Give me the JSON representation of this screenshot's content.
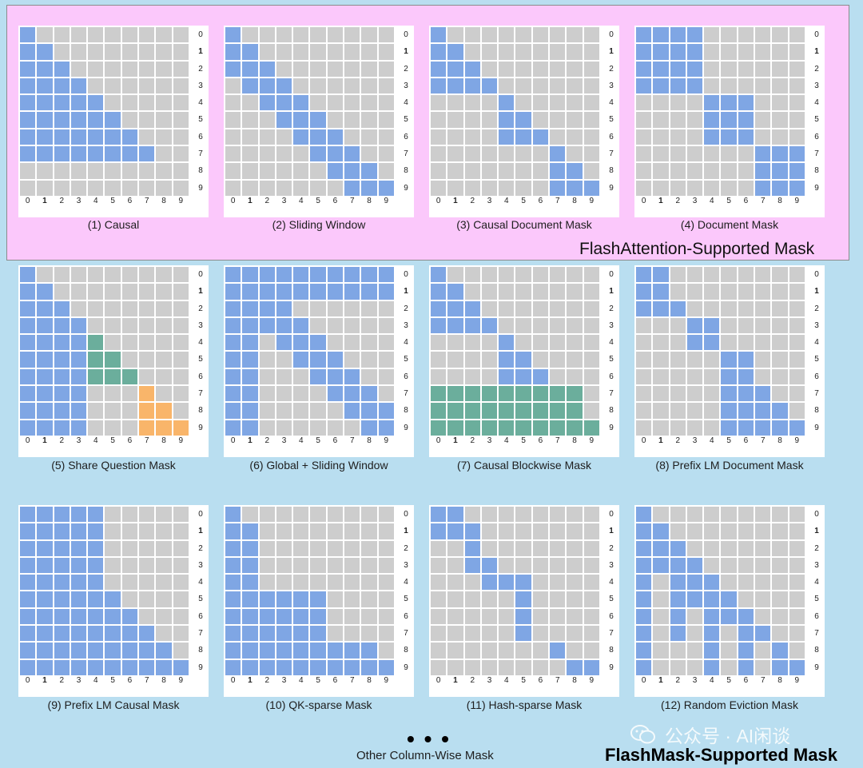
{
  "region_labels": {
    "flashattention": "FlashAttention-Supported Mask",
    "flashmask": "FlashMask-Supported Mask",
    "other": "Other Column-Wise Mask",
    "ellipsis": "• • •"
  },
  "watermark": {
    "text": "公众号 · AI闲谈",
    "icon": "wechat-icon"
  },
  "colors": {
    "masked": "#cdcdcd",
    "attended": "#7fa6e4",
    "shared": "#6bae9c",
    "answer": "#f9b56a",
    "pink_region": "#fbc8fb",
    "blue_region": "#b9def0"
  },
  "axis_labels": [
    "0",
    "1",
    "2",
    "3",
    "4",
    "5",
    "6",
    "7",
    "8",
    "9"
  ],
  "masks": [
    {
      "title": "(1) Causal",
      "rows": [
        "B.........",
        "BB........",
        "BBB.......",
        "BBBB......",
        "BBBBB.....",
        "BBBBBB....",
        "BBBBBBB...",
        "BBBBBBBB..",
        "..........",
        ".........."
      ]
    },
    {
      "title": "(2) Sliding Window",
      "rows": [
        "B.........",
        "BB........",
        "BBB.......",
        ".BBB......",
        "..BBB.....",
        "...BBB....",
        "....BBB...",
        ".....BBB..",
        "......BBB.",
        ".......BBB"
      ]
    },
    {
      "title": "(3) Causal Document Mask",
      "rows": [
        "B.........",
        "BB........",
        "BBB.......",
        "BBBB......",
        "....B.....",
        "....BB....",
        "....BBB...",
        ".......B..",
        ".......BB.",
        ".......BBB"
      ]
    },
    {
      "title": "(4) Document Mask",
      "rows": [
        "BBBB......",
        "BBBB......",
        "BBBB......",
        "BBBB......",
        "....BBB...",
        "....BBB...",
        "....BBB...",
        ".......BBB",
        ".......BBB",
        ".......BBB"
      ]
    },
    {
      "title": "(5) Share Question Mask",
      "rows": [
        "B.........",
        "BB........",
        "BBB.......",
        "BBBB......",
        "BBBBG.....",
        "BBBBGG....",
        "BBBBGGG...",
        "BBBB...O..",
        "BBBB...OO.",
        "BBBB...OOO"
      ]
    },
    {
      "title": "(6) Global + Sliding Window",
      "rows": [
        "BBBBBBBBBB",
        "BBBBBBBBBB",
        "BBBB......",
        "BBBBB.....",
        "BB.BBB....",
        "BB..BBB...",
        "BB...BBB..",
        "BB....BBB.",
        "BB.....BBB",
        "BB......BB"
      ]
    },
    {
      "title": "(7) Causal  Blockwise Mask",
      "rows": [
        "B.........",
        "BB........",
        "BBB.......",
        "BBBB......",
        "....B.....",
        "....BB....",
        "....BBB...",
        "GGGGGGGGG.",
        "GGGGGGGGG.",
        "GGGGGGGGGG"
      ]
    },
    {
      "title": "(8) Prefix LM Document Mask",
      "rows": [
        "BB........",
        "BB........",
        "BBB.......",
        "...BB.....",
        "...BB.....",
        ".....BB...",
        ".....BB...",
        ".....BBB..",
        ".....BBBB.",
        ".....BBBBB"
      ]
    },
    {
      "title": "(9) Prefix LM Causal Mask",
      "rows": [
        "BBBBB.....",
        "BBBBB.....",
        "BBBBB.....",
        "BBBBB.....",
        "BBBBB.....",
        "BBBBBB....",
        "BBBBBBB...",
        "BBBBBBBB..",
        "BBBBBBBBB.",
        "BBBBBBBBBB"
      ]
    },
    {
      "title": "(10) QK-sparse Mask",
      "rows": [
        "B.........",
        "BB........",
        "BB........",
        "BB........",
        "BB........",
        "BBBBBB....",
        "BBBBBB....",
        "BBBBBB....",
        "BBBBBBBBB.",
        "BBBBBBBBBB"
      ]
    },
    {
      "title": "(11) Hash-sparse Mask",
      "rows": [
        "BB........",
        "BBB.......",
        "..B.......",
        "..BB......",
        "...BBB....",
        ".....B....",
        ".....B....",
        ".....B....",
        ".......B..",
        "........BB"
      ]
    },
    {
      "title": "(12) Random Eviction Mask",
      "rows": [
        "B.........",
        "BB........",
        "BBB.......",
        "BBBB......",
        "B.BBB.....",
        "B.BBBB....",
        "B.B.BBB...",
        "B.B.B.BB..",
        "B...B.B.B.",
        "B...B.B.BB"
      ]
    }
  ]
}
